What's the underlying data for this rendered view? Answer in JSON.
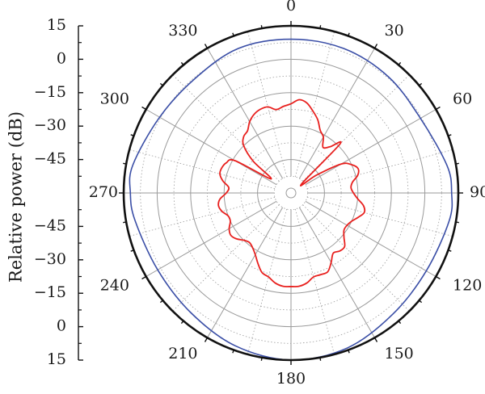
{
  "chart_data": {
    "type": "polar-line",
    "ylabel": "Relative power (dB)",
    "radial_axis_ticks": [
      "15",
      "0",
      "−15",
      "−30",
      "−45",
      "270",
      "−45",
      "−30",
      "−15",
      "0",
      "15"
    ],
    "angle_ticks": [
      "0",
      "30",
      "60",
      "90",
      "120",
      "150",
      "180",
      "210",
      "240",
      "270",
      "300",
      "330"
    ],
    "rlim": [
      -60,
      15
    ],
    "rings_db": [
      15,
      0,
      -15,
      -30,
      -45
    ],
    "angle_direction": "clockwise",
    "zero_location": "top",
    "grid": true,
    "series": [
      {
        "color": "#3a4ea6",
        "theta": [
          0,
          20,
          40,
          60,
          80,
          90,
          100,
          120,
          140,
          160,
          180,
          200,
          220,
          240,
          260,
          270,
          280,
          300,
          320,
          340,
          360
        ],
        "r": [
          9,
          9,
          8,
          7,
          11,
          12,
          12,
          10,
          11,
          14,
          15,
          13,
          10,
          9,
          11,
          12,
          12,
          8,
          7,
          9,
          9
        ]
      },
      {
        "color": "#e8201e",
        "theta": [
          0,
          5,
          10,
          15,
          20,
          25,
          30,
          35,
          40,
          45,
          50,
          55,
          60,
          65,
          70,
          75,
          80,
          85,
          90,
          95,
          100,
          105,
          110,
          115,
          120,
          125,
          130,
          135,
          140,
          145,
          150,
          155,
          160,
          165,
          170,
          175,
          180,
          185,
          190,
          195,
          200,
          205,
          210,
          215,
          220,
          225,
          230,
          235,
          240,
          245,
          250,
          255,
          260,
          265,
          270,
          275,
          280,
          285,
          290,
          295,
          300,
          305,
          310,
          315,
          320,
          325,
          330,
          335,
          340,
          345,
          350,
          355,
          360
        ],
        "r": [
          -20,
          -18,
          -19,
          -22,
          -25,
          -29,
          -31,
          -35,
          -33,
          -29,
          -54,
          -46,
          -34,
          -30,
          -28,
          -29,
          -32,
          -33,
          -32,
          -30,
          -27,
          -26,
          -28,
          -30,
          -31,
          -31,
          -29,
          -26,
          -26,
          -27,
          -24,
          -21,
          -21,
          -21,
          -19,
          -18,
          -18,
          -18,
          -19,
          -21,
          -22,
          -25,
          -28,
          -30,
          -31,
          -30,
          -28,
          -27,
          -28,
          -30,
          -30,
          -28,
          -27,
          -28,
          -31,
          -32,
          -29,
          -27,
          -27,
          -28,
          -31,
          -49,
          -38,
          -30,
          -27,
          -26,
          -23,
          -21,
          -20,
          -20,
          -22,
          -21,
          -20
        ]
      }
    ]
  }
}
